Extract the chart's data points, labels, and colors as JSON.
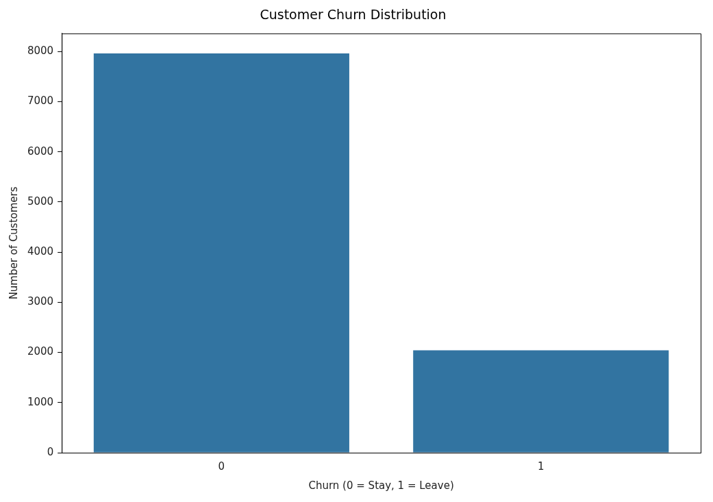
{
  "chart_data": {
    "type": "bar",
    "title": "Customer Churn Distribution",
    "xlabel": "Churn (0 = Stay, 1 = Leave)",
    "ylabel": "Number of Customers",
    "categories": [
      "0",
      "1"
    ],
    "values": [
      7960,
      2040
    ],
    "color": "#3274a1",
    "ylim": [
      0,
      8360
    ],
    "yticks": [
      0,
      1000,
      2000,
      3000,
      4000,
      5000,
      6000,
      7000,
      8000
    ],
    "grid": false,
    "legend": false
  }
}
